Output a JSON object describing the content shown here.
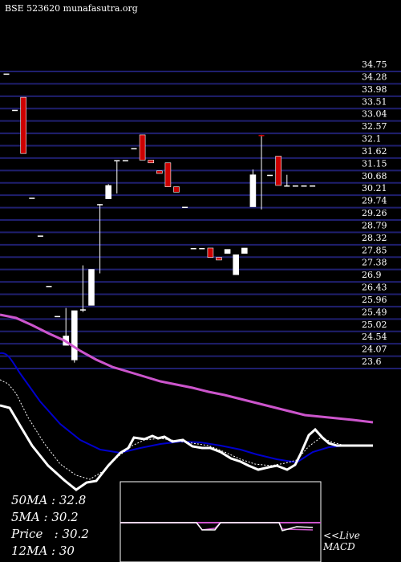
{
  "header": {
    "title": "BSE 523620",
    "site": "munafasutra.org"
  },
  "colors": {
    "background": "#000000",
    "gridline": "#1f1f6e",
    "bull_candle": "#ffffff",
    "bear_candle": "#cc0000",
    "ma_long": "#cc55cc",
    "ma_short": "#0000cc",
    "price_line": "#ffffff",
    "macd_signal": "#cc55cc"
  },
  "chart_data": {
    "type": "candlestick",
    "ylim": [
      23.6,
      34.75
    ],
    "y_ticks": [
      "34.75",
      "34.28",
      "33.98",
      "33.51",
      "33.04",
      "32.57",
      "32.1",
      "31.62",
      "31.15",
      "30.68",
      "30.21",
      "29.74",
      "29.26",
      "28.79",
      "28.32",
      "27.85",
      "27.38",
      "26.9",
      "26.43",
      "25.96",
      "25.49",
      "25.02",
      "24.54",
      "24.07",
      "23.6"
    ],
    "candles": [
      {
        "o": 34.4,
        "h": 34.4,
        "l": 34.4,
        "c": 34.4
      },
      {
        "o": 33.04,
        "h": 33.04,
        "l": 33.04,
        "c": 33.04
      },
      {
        "o": 33.51,
        "h": 33.51,
        "l": 31.4,
        "c": 31.4
      },
      {
        "o": 29.74,
        "h": 29.74,
        "l": 29.74,
        "c": 29.74
      },
      {
        "o": 28.32,
        "h": 28.32,
        "l": 28.32,
        "c": 28.32
      },
      {
        "o": 26.43,
        "h": 26.43,
        "l": 26.43,
        "c": 26.43
      },
      {
        "o": 25.3,
        "h": 25.3,
        "l": 25.3,
        "c": 25.3
      },
      {
        "o": 24.2,
        "h": 25.6,
        "l": 24.2,
        "c": 24.55
      },
      {
        "o": 23.65,
        "h": 25.5,
        "l": 23.55,
        "c": 25.5
      },
      {
        "o": 25.55,
        "h": 27.2,
        "l": 25.45,
        "c": 25.55
      },
      {
        "o": 25.7,
        "h": 27.05,
        "l": 25.7,
        "c": 27.05
      },
      {
        "o": 29.5,
        "h": 29.5,
        "l": 26.9,
        "c": 29.5
      },
      {
        "o": 29.7,
        "h": 30.25,
        "l": 29.7,
        "c": 30.2
      },
      {
        "o": 31.15,
        "h": 31.15,
        "l": 29.9,
        "c": 31.15
      },
      {
        "o": 31.15,
        "h": 31.15,
        "l": 31.15,
        "c": 31.15
      },
      {
        "o": 31.6,
        "h": 31.6,
        "l": 31.6,
        "c": 31.6
      },
      {
        "o": 32.1,
        "h": 32.1,
        "l": 31.15,
        "c": 31.15
      },
      {
        "o": 31.15,
        "h": 31.15,
        "l": 31.05,
        "c": 31.05
      },
      {
        "o": 30.75,
        "h": 30.75,
        "l": 30.65,
        "c": 30.65
      },
      {
        "o": 31.05,
        "h": 31.05,
        "l": 30.15,
        "c": 30.15
      },
      {
        "o": 30.15,
        "h": 30.15,
        "l": 29.95,
        "c": 29.95
      },
      {
        "o": 29.4,
        "h": 29.4,
        "l": 29.4,
        "c": 29.4
      },
      {
        "o": 27.85,
        "h": 27.85,
        "l": 27.85,
        "c": 27.85
      },
      {
        "o": 27.85,
        "h": 27.85,
        "l": 27.85,
        "c": 27.85
      },
      {
        "o": 27.85,
        "h": 27.85,
        "l": 27.5,
        "c": 27.5
      },
      {
        "o": 27.5,
        "h": 27.5,
        "l": 27.4,
        "c": 27.4
      },
      {
        "o": 27.65,
        "h": 27.8,
        "l": 27.65,
        "c": 27.8
      },
      {
        "o": 26.85,
        "h": 27.6,
        "l": 26.85,
        "c": 27.6
      },
      {
        "o": 27.65,
        "h": 27.85,
        "l": 27.65,
        "c": 27.85
      },
      {
        "o": 29.4,
        "h": 30.8,
        "l": 29.4,
        "c": 30.6
      },
      {
        "o": 32.1,
        "h": 32.1,
        "l": 29.3,
        "c": 32.05
      },
      {
        "o": 30.6,
        "h": 30.6,
        "l": 30.6,
        "c": 30.6
      },
      {
        "o": 31.3,
        "h": 31.3,
        "l": 30.2,
        "c": 30.2
      },
      {
        "o": 30.2,
        "h": 30.6,
        "l": 30.2,
        "c": 30.2
      },
      {
        "o": 30.2,
        "h": 30.2,
        "l": 30.2,
        "c": 30.2
      },
      {
        "o": 30.2,
        "h": 30.2,
        "l": 30.2,
        "c": 30.2
      },
      {
        "o": 30.2,
        "h": 30.2,
        "l": 30.2,
        "c": 30.2
      }
    ]
  },
  "stats": {
    "ma50": "50MA : 32.8",
    "ma5": "5MA : 30.2",
    "price": "Price   : 30.2",
    "ma12": "12MA : 30"
  },
  "macd": {
    "live_label": "<<Live",
    "macd_label": "MACD"
  }
}
